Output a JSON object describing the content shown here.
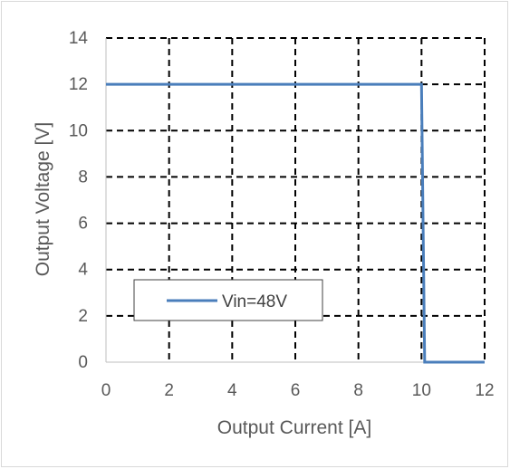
{
  "chart_data": {
    "type": "line",
    "title": "",
    "xlabel": "Output Current [A]",
    "ylabel": "Output Voltage [V]",
    "xlim": [
      0,
      12
    ],
    "ylim": [
      0,
      14
    ],
    "x_ticks": [
      0,
      2,
      4,
      6,
      8,
      10,
      12
    ],
    "y_ticks": [
      0,
      2,
      4,
      6,
      8,
      10,
      12,
      14
    ],
    "grid": true,
    "grid_style": "dashed",
    "legend_position": "bottom-left",
    "series": [
      {
        "name": "Vin=48V",
        "color": "#4a7ebb",
        "points": [
          {
            "x": 0,
            "y": 12
          },
          {
            "x": 10,
            "y": 12
          },
          {
            "x": 10.1,
            "y": 0
          },
          {
            "x": 12,
            "y": 0
          }
        ]
      }
    ]
  }
}
